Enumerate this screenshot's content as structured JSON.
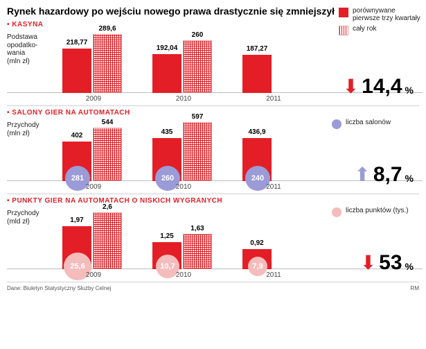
{
  "title": "Rynek hazardowy po wejściu nowego prawa drastycznie się zmniejszył",
  "legend_main": {
    "solid": "porównywane pierwsze trzy kwartały",
    "hatch": "cały rok"
  },
  "colors": {
    "solid": "#e41e26",
    "purple": "#9b9bd8",
    "pink": "#f5bcbc"
  },
  "sections": [
    {
      "title": "KASYNA",
      "axis": "Podstawa opodatko-\nwania\n(mln zł)",
      "years": [
        "2009",
        "2010",
        "2011"
      ],
      "solid": [
        218.77,
        192.04,
        187.27
      ],
      "hatch": [
        289.6,
        260,
        null
      ],
      "solid_labels": [
        "218,77",
        "192,04",
        "187,27"
      ],
      "hatch_labels": [
        "289,6",
        "260",
        ""
      ],
      "max": 300,
      "pct": {
        "dir": "down",
        "val": "14,4",
        "unit": "%"
      }
    },
    {
      "title": "SALONY GIER NA AUTOMATACH",
      "axis": "Przychody\n(mln zł)",
      "years": [
        "2009",
        "2010",
        "2011"
      ],
      "solid": [
        402,
        435,
        436.9
      ],
      "hatch": [
        544,
        597,
        null
      ],
      "solid_labels": [
        "402",
        "435",
        "436,9"
      ],
      "hatch_labels": [
        "544",
        "597",
        ""
      ],
      "max": 620,
      "circles": {
        "color": "purple",
        "values": [
          "281",
          "260",
          "240"
        ],
        "size": 36
      },
      "circle_legend": "liczba salonów",
      "pct": {
        "dir": "up",
        "val": "8,7",
        "unit": "%"
      }
    },
    {
      "title": "PUNKTY GIER NA AUTOMATACH O NISKICH WYGRANYCH",
      "axis": "Przychody\n(mld zł)",
      "years": [
        "2009",
        "2010",
        "2011"
      ],
      "solid": [
        1.97,
        1.25,
        0.92
      ],
      "hatch": [
        2.6,
        1.63,
        null
      ],
      "solid_labels": [
        "1,97",
        "1,25",
        "0,92"
      ],
      "hatch_labels": [
        "2,6",
        "1,63",
        ""
      ],
      "max": 2.8,
      "circles": {
        "color": "pink",
        "values": [
          "25,6",
          "10,7",
          "7,9"
        ],
        "size": [
          40,
          34,
          28
        ]
      },
      "circle_legend": "liczba punktów (tys.)",
      "pct": {
        "dir": "down",
        "val": "53",
        "unit": "%"
      }
    }
  ],
  "footer": {
    "source": "Dane: Biuletyn Statystyczny Służby Celnej",
    "author": "RM"
  }
}
